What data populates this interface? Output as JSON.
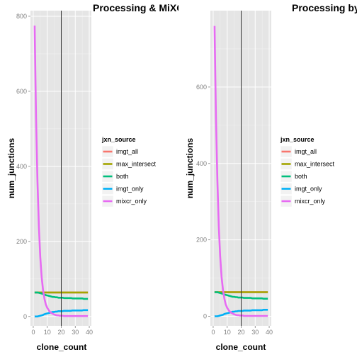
{
  "chart_data": [
    {
      "type": "line",
      "title": "Processing & MiXCR",
      "xlabel": "clone_count",
      "ylabel": "num_junctions",
      "xlim": [
        -2,
        41.5
      ],
      "ylim": [
        -25,
        815
      ],
      "xticks": [
        0,
        10,
        20,
        30,
        40
      ],
      "yticks": [
        0,
        200,
        400,
        600,
        800
      ],
      "vline_x": 20,
      "grid": true,
      "legend": {
        "title": "jxn_source",
        "position": "right"
      },
      "x": [
        1,
        2,
        3,
        4,
        5,
        6,
        7,
        8,
        9,
        10,
        11,
        12,
        13,
        14,
        15,
        16,
        17,
        18,
        19,
        20,
        21,
        22,
        23,
        24,
        25,
        26,
        27,
        28,
        29,
        30,
        31,
        32,
        33,
        34,
        35,
        36,
        37,
        38,
        39
      ],
      "series": [
        {
          "name": "imgt_all",
          "color": "#F8766D",
          "values": [
            64,
            64,
            64,
            64,
            64,
            64,
            64,
            64,
            64,
            64,
            64,
            64,
            64,
            64,
            64,
            64,
            64,
            64,
            64,
            64,
            64,
            64,
            64,
            64,
            64,
            64,
            64,
            64,
            64,
            64,
            64,
            64,
            64,
            64,
            64,
            64,
            64,
            64,
            64
          ]
        },
        {
          "name": "max_intersect",
          "color": "#A3A500",
          "values": [
            64,
            64,
            64,
            64,
            64,
            64,
            64,
            64,
            64,
            64,
            64,
            64,
            64,
            64,
            64,
            64,
            64,
            64,
            64,
            64,
            64,
            64,
            64,
            64,
            64,
            64,
            64,
            64,
            64,
            64,
            64,
            64,
            64,
            64,
            64,
            64,
            64,
            64,
            64
          ]
        },
        {
          "name": "both",
          "color": "#00BF7D",
          "values": [
            64,
            64,
            64,
            63,
            62,
            61,
            60,
            58,
            57,
            56,
            55,
            54,
            53,
            52,
            52,
            51,
            51,
            50,
            50,
            50,
            50,
            49,
            49,
            49,
            49,
            49,
            49,
            48,
            48,
            48,
            48,
            48,
            48,
            48,
            48,
            47,
            47,
            47,
            47
          ]
        },
        {
          "name": "imgt_only",
          "color": "#00B0F6",
          "values": [
            0,
            0,
            0,
            1,
            2,
            3,
            4,
            6,
            7,
            8,
            9,
            10,
            11,
            12,
            12,
            13,
            13,
            14,
            14,
            14,
            14,
            15,
            15,
            15,
            15,
            15,
            15,
            16,
            16,
            16,
            16,
            16,
            16,
            16,
            16,
            17,
            17,
            17,
            17
          ]
        },
        {
          "name": "mixcr_only",
          "color": "#E76BF3",
          "values": [
            775,
            530,
            360,
            240,
            160,
            105,
            70,
            47,
            32,
            23,
            17,
            12,
            9,
            7,
            5,
            4,
            3,
            3,
            2,
            2,
            2,
            1,
            1,
            1,
            1,
            1,
            1,
            1,
            1,
            1,
            1,
            1,
            1,
            1,
            1,
            1,
            1,
            1,
            1
          ]
        }
      ]
    },
    {
      "type": "line",
      "title": "Processing by",
      "xlabel": "clone_count",
      "ylabel": "num_junctions",
      "xlim": [
        -2,
        41.5
      ],
      "ylim": [
        -25,
        800
      ],
      "xticks": [
        0,
        10,
        20,
        30,
        40
      ],
      "yticks": [
        0,
        200,
        400,
        600
      ],
      "vline_x": 20,
      "grid": true,
      "legend": {
        "title": "jxn_source",
        "position": "right"
      },
      "x": [
        1,
        2,
        3,
        4,
        5,
        6,
        7,
        8,
        9,
        10,
        11,
        12,
        13,
        14,
        15,
        16,
        17,
        18,
        19,
        20,
        21,
        22,
        23,
        24,
        25,
        26,
        27,
        28,
        29,
        30,
        31,
        32,
        33,
        34,
        35,
        36,
        37,
        38,
        39
      ],
      "series": [
        {
          "name": "imgt_all",
          "color": "#F8766D",
          "values": [
            63,
            63,
            63,
            63,
            63,
            63,
            63,
            63,
            63,
            63,
            63,
            63,
            63,
            63,
            63,
            63,
            63,
            63,
            63,
            63,
            63,
            63,
            63,
            63,
            63,
            63,
            63,
            63,
            63,
            63,
            63,
            63,
            63,
            63,
            63,
            63,
            63,
            63,
            63
          ]
        },
        {
          "name": "max_intersect",
          "color": "#A3A500",
          "values": [
            63,
            63,
            63,
            63,
            63,
            63,
            63,
            63,
            63,
            63,
            63,
            63,
            63,
            63,
            63,
            63,
            63,
            63,
            63,
            63,
            63,
            63,
            63,
            63,
            63,
            63,
            63,
            63,
            63,
            63,
            63,
            63,
            63,
            63,
            63,
            63,
            63,
            63,
            63
          ]
        },
        {
          "name": "both",
          "color": "#00BF7D",
          "values": [
            63,
            63,
            63,
            62,
            61,
            60,
            59,
            57,
            56,
            55,
            54,
            53,
            52,
            51,
            51,
            50,
            50,
            49,
            49,
            49,
            49,
            48,
            48,
            48,
            48,
            48,
            48,
            47,
            47,
            47,
            47,
            47,
            47,
            47,
            47,
            46,
            46,
            46,
            46
          ]
        },
        {
          "name": "imgt_only",
          "color": "#00B0F6",
          "values": [
            0,
            0,
            0,
            1,
            2,
            3,
            4,
            6,
            7,
            8,
            9,
            10,
            11,
            12,
            12,
            13,
            13,
            14,
            14,
            14,
            14,
            15,
            15,
            15,
            15,
            15,
            15,
            16,
            16,
            16,
            16,
            16,
            16,
            16,
            16,
            17,
            17,
            17,
            17
          ]
        },
        {
          "name": "mixcr_only",
          "color": "#E76BF3",
          "values": [
            760,
            520,
            355,
            235,
            158,
            103,
            69,
            46,
            31,
            22,
            16,
            12,
            9,
            7,
            5,
            4,
            3,
            3,
            2,
            2,
            2,
            1,
            1,
            1,
            1,
            1,
            1,
            1,
            1,
            1,
            1,
            1,
            1,
            1,
            1,
            1,
            1,
            1,
            1
          ]
        }
      ]
    }
  ]
}
